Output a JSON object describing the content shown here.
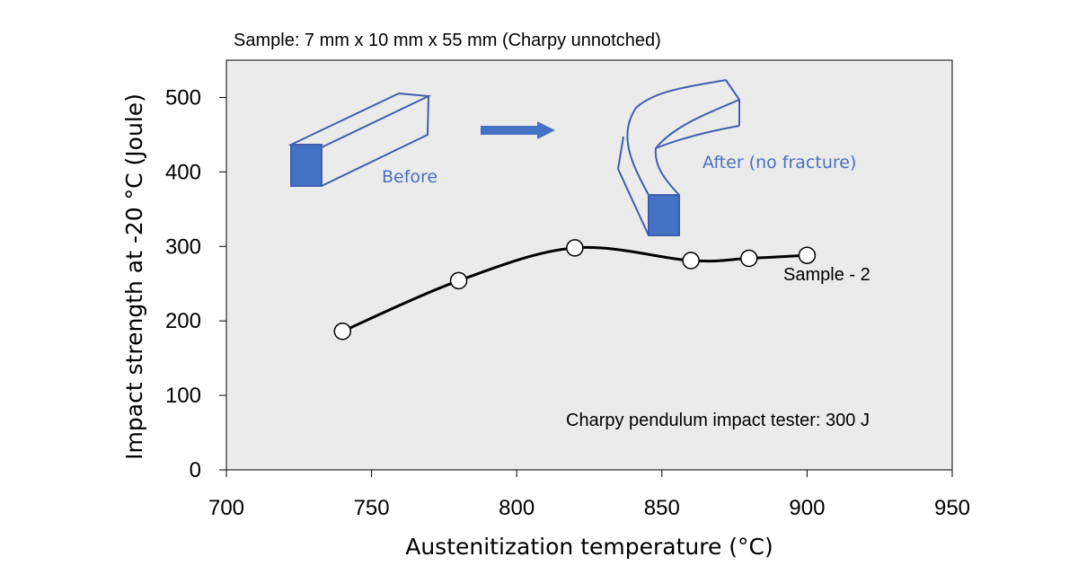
{
  "chart_data": {
    "type": "line",
    "title": "Sample: 7 mm x 10 mm x 55 mm (Charpy unnotched)",
    "xlabel": "Austenitization temperature (°C)",
    "ylabel": "Impact strength at -20 °C (Joule)",
    "xlim": [
      700,
      950
    ],
    "ylim": [
      0,
      550
    ],
    "xticks": [
      700,
      750,
      800,
      850,
      900,
      950
    ],
    "yticks": [
      0,
      100,
      200,
      300,
      400,
      500
    ],
    "grid": false,
    "series": [
      {
        "name": "Sample - 2",
        "x": [
          740,
          780,
          820,
          860,
          880,
          900
        ],
        "y": [
          186,
          254,
          298,
          281,
          284,
          288
        ]
      }
    ],
    "annotations": {
      "tester": "Charpy pendulum impact tester: 300 J",
      "before": "Before",
      "after": "After (no fracture)"
    },
    "colors": {
      "plot_background": "#ebebeb",
      "specimen_fill": "#4472c4",
      "specimen_outline": "#3f5fae",
      "arrow": "#4472c4",
      "curve": "#000000"
    }
  }
}
